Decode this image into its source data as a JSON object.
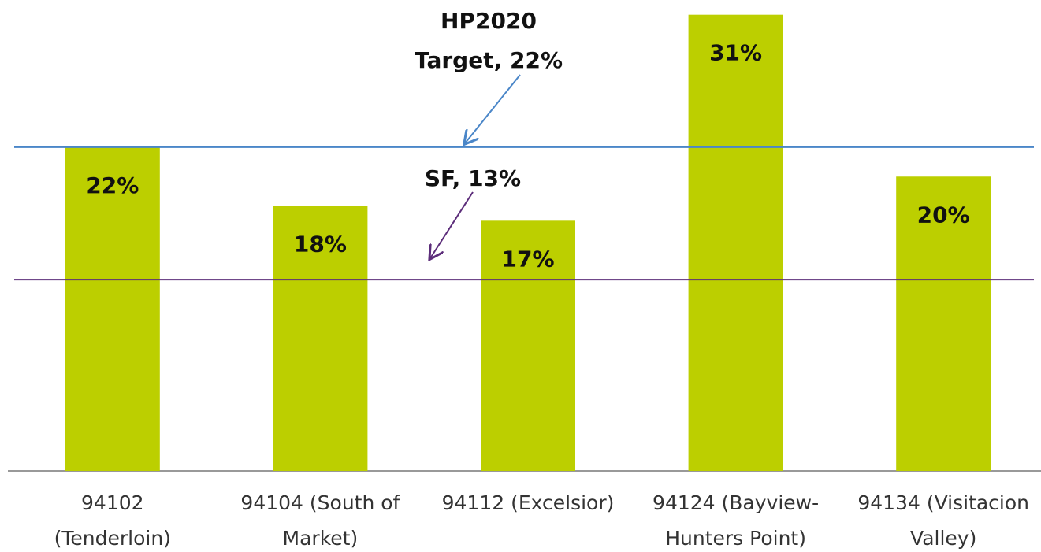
{
  "chart_data": {
    "type": "bar",
    "categories": [
      [
        "94102",
        "(Tenderloin)"
      ],
      [
        "94104 (South of",
        "Market)"
      ],
      [
        "94112 (Excelsior)"
      ],
      [
        "94124 (Bayview-",
        "Hunters Point)"
      ],
      [
        "94134 (Visitacion",
        "Valley)"
      ]
    ],
    "values": [
      22,
      18,
      17,
      31,
      20
    ],
    "value_labels": [
      "22%",
      "18%",
      "17%",
      "31%",
      "20%"
    ],
    "color": "#bccf00",
    "ylim": [
      0,
      32
    ],
    "reference_lines": [
      {
        "value": 22,
        "label": [
          "HP2020",
          "Target, 22%"
        ],
        "color": "#4a86c8"
      },
      {
        "value": 13,
        "label": [
          "SF, 13%"
        ],
        "color": "#5c2d7a"
      }
    ]
  }
}
